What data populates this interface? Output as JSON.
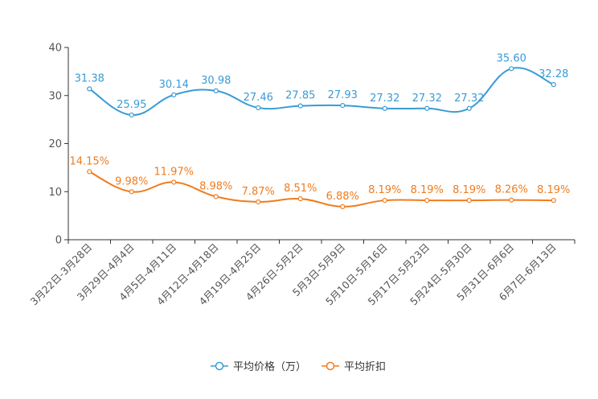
{
  "chart_data": {
    "type": "line",
    "title": "",
    "xlabel": "",
    "ylabel": "",
    "ylim": [
      0,
      40
    ],
    "yticks": [
      0,
      10,
      20,
      30,
      40
    ],
    "grid": false,
    "legend_position": "bottom-center",
    "categories": [
      "3月22日-3月28日",
      "3月29日-4月4日",
      "4月5日-4月11日",
      "4月12日-4月18日",
      "4月19日-4月25日",
      "4月26日-5月2日",
      "5月3日-5月9日",
      "5月10日-5月16日",
      "5月17日-5月23日",
      "5月24日-5月30日",
      "5月31日-6月6日",
      "6月7日-6月13日"
    ],
    "series": [
      {
        "name": "平均价格（万）",
        "color": "#3a9bd5",
        "values": [
          31.38,
          25.95,
          30.14,
          30.98,
          27.46,
          27.85,
          27.93,
          27.32,
          27.32,
          27.32,
          35.6,
          32.28
        ],
        "labels": [
          "31.38",
          "25.95",
          "30.14",
          "30.98",
          "27.46",
          "27.85",
          "27.93",
          "27.32",
          "27.32",
          "27.32",
          "35.60",
          "32.28"
        ]
      },
      {
        "name": "平均折扣",
        "color": "#f07c1e",
        "values": [
          14.15,
          9.98,
          11.97,
          8.98,
          7.87,
          8.51,
          6.88,
          8.19,
          8.19,
          8.19,
          8.26,
          8.19
        ],
        "labels": [
          "14.15%",
          "9.98%",
          "11.97%",
          "8.98%",
          "7.87%",
          "8.51%",
          "6.88%",
          "8.19%",
          "8.19%",
          "8.19%",
          "8.26%",
          "8.19%"
        ]
      }
    ]
  }
}
